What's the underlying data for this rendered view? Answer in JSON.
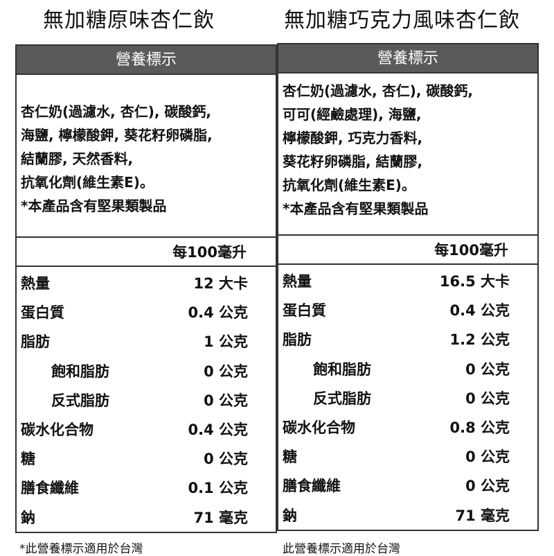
{
  "products": [
    {
      "title": "無加糖原味杏仁飲",
      "header": "營養標示",
      "ingredients": [
        "杏仁奶(過濾水, 杏仁), 碳酸鈣,",
        "海鹽, 檸檬酸鉀, 葵花籽卵磷脂,",
        "結蘭膠, 天然香料,",
        "抗氧化劑(維生素E)。",
        "*本產品含有堅果類製品"
      ],
      "per": "每100毫升",
      "rows": [
        {
          "label": "熱量",
          "value": "12 大卡"
        },
        {
          "label": "蛋白質",
          "value": "0.4 公克"
        },
        {
          "label": "脂肪",
          "value": "1 公克"
        },
        {
          "label": "飽和脂肪",
          "value": "0 公克"
        },
        {
          "label": "反式脂肪",
          "value": "0 公克"
        },
        {
          "label": "碳水化合物",
          "value": "0.4 公克"
        },
        {
          "label": "糖",
          "value": "0 公克"
        },
        {
          "label": "膳食纖維",
          "value": "0.1 公克"
        },
        {
          "label": "鈉",
          "value": "71 毫克"
        }
      ],
      "footnote": "*此營養標示適用於台灣"
    },
    {
      "title": "無加糖巧克力風味杏仁飲",
      "header": "營養標示",
      "ingredients": [
        "杏仁奶(過濾水, 杏仁), 碳酸鈣,",
        "可可(經鹼處理), 海鹽,",
        "檸檬酸鉀, 巧克力香料,",
        "葵花籽卵磷脂, 結蘭膠,",
        "抗氧化劑(維生素E)。",
        "*本產品含有堅果類製品"
      ],
      "per": "每100毫升",
      "rows": [
        {
          "label": "熱量",
          "value": "16.5 大卡"
        },
        {
          "label": "蛋白質",
          "value": "0.4 公克"
        },
        {
          "label": "脂肪",
          "value": "1.2 公克"
        },
        {
          "label": "飽和脂肪",
          "value": "0 公克"
        },
        {
          "label": "反式脂肪",
          "value": "0 公克"
        },
        {
          "label": "碳水化合物",
          "value": "0.8 公克"
        },
        {
          "label": "糖",
          "value": "0 公克"
        },
        {
          "label": "膳食纖維",
          "value": "0 公克"
        },
        {
          "label": "鈉",
          "value": "71 毫克"
        }
      ],
      "footnote": "此營養標示適用於台灣"
    }
  ],
  "colors": {
    "header_bg": "#5a5a5a",
    "border": "#333333"
  }
}
